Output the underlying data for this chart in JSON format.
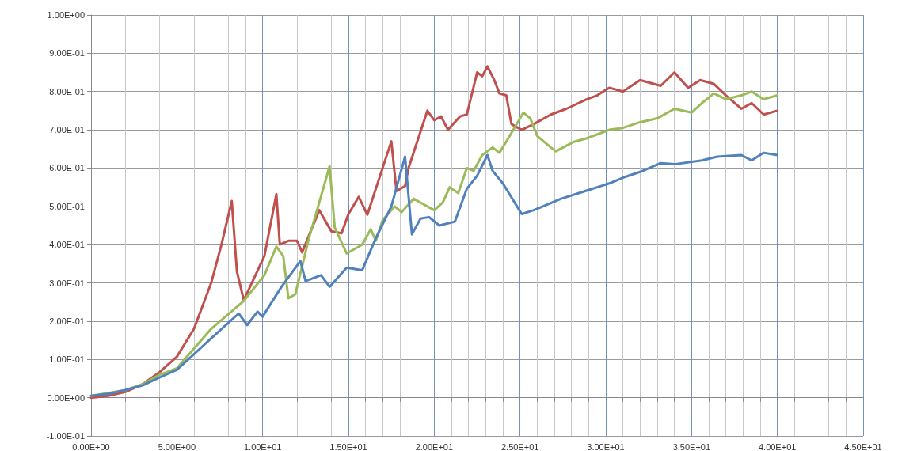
{
  "chart_data": {
    "type": "line",
    "xlim": [
      0,
      45
    ],
    "ylim": [
      -0.1,
      1.0
    ],
    "xticks": [
      {
        "value": 0,
        "label": "0.00E+00"
      },
      {
        "value": 1,
        "label": null
      },
      {
        "value": 2,
        "label": null
      },
      {
        "value": 3,
        "label": null
      },
      {
        "value": 4,
        "label": null
      },
      {
        "value": 5,
        "label": "5.00E+00"
      },
      {
        "value": 6,
        "label": null
      },
      {
        "value": 7,
        "label": null
      },
      {
        "value": 8,
        "label": null
      },
      {
        "value": 9,
        "label": null
      },
      {
        "value": 10,
        "label": "1.00E+01"
      },
      {
        "value": 11,
        "label": null
      },
      {
        "value": 12,
        "label": null
      },
      {
        "value": 13,
        "label": null
      },
      {
        "value": 14,
        "label": null
      },
      {
        "value": 15,
        "label": "1.50E+01"
      },
      {
        "value": 16,
        "label": null
      },
      {
        "value": 17,
        "label": null
      },
      {
        "value": 18,
        "label": null
      },
      {
        "value": 19,
        "label": null
      },
      {
        "value": 20,
        "label": "2.00E+01"
      },
      {
        "value": 21,
        "label": null
      },
      {
        "value": 22,
        "label": null
      },
      {
        "value": 23,
        "label": null
      },
      {
        "value": 24,
        "label": null
      },
      {
        "value": 25,
        "label": "2.50E+01"
      },
      {
        "value": 26,
        "label": null
      },
      {
        "value": 27,
        "label": null
      },
      {
        "value": 28,
        "label": null
      },
      {
        "value": 29,
        "label": null
      },
      {
        "value": 30,
        "label": "3.00E+01"
      },
      {
        "value": 31,
        "label": null
      },
      {
        "value": 32,
        "label": null
      },
      {
        "value": 33,
        "label": null
      },
      {
        "value": 34,
        "label": null
      },
      {
        "value": 35,
        "label": "3.50E+01"
      },
      {
        "value": 36,
        "label": null
      },
      {
        "value": 37,
        "label": null
      },
      {
        "value": 38,
        "label": null
      },
      {
        "value": 39,
        "label": null
      },
      {
        "value": 40,
        "label": "4.00E+01"
      },
      {
        "value": 41,
        "label": null
      },
      {
        "value": 42,
        "label": null
      },
      {
        "value": 43,
        "label": null
      },
      {
        "value": 44,
        "label": null
      },
      {
        "value": 45,
        "label": "4.50E+01"
      }
    ],
    "yticks": [
      {
        "value": -0.1,
        "label": "-1.00E-01"
      },
      {
        "value": 0,
        "label": "0.00E+00"
      },
      {
        "value": 0.1,
        "label": "1.00E-01"
      },
      {
        "value": 0.2,
        "label": "2.00E-01"
      },
      {
        "value": 0.3,
        "label": "3.00E-01"
      },
      {
        "value": 0.4,
        "label": "4.00E-01"
      },
      {
        "value": 0.5,
        "label": "5.00E-01"
      },
      {
        "value": 0.6,
        "label": "6.00E-01"
      },
      {
        "value": 0.7,
        "label": "7.00E-01"
      },
      {
        "value": 0.8,
        "label": "8.00E-01"
      },
      {
        "value": 0.9,
        "label": "9.00E-01"
      },
      {
        "value": 1.0,
        "label": "1.00E+00"
      }
    ],
    "grid": true,
    "marker": "none",
    "line_style": "solid",
    "series": [
      {
        "color": "#c0504d",
        "x": [
          0,
          1,
          2,
          3,
          4,
          5,
          6,
          7,
          7.6,
          8.2,
          8.5,
          8.9,
          10.1,
          10.8,
          11.0,
          11.5,
          12.0,
          12.3,
          13.3,
          14.0,
          14.6,
          15.0,
          15.6,
          16.1,
          17.5,
          17.8,
          18.3,
          18.5,
          19.6,
          20.0,
          20.4,
          20.8,
          21.5,
          21.9,
          22.5,
          22.8,
          23.1,
          23.5,
          23.8,
          24.2,
          24.5,
          25.1,
          25.8,
          26.8,
          27.7,
          28.9,
          29.5,
          30.2,
          31,
          32,
          33.2,
          34,
          34.8,
          35.5,
          36.3,
          37,
          37.9,
          38.5,
          39.2,
          40.0
        ],
        "values": [
          0,
          0.005,
          0.015,
          0.035,
          0.067,
          0.107,
          0.18,
          0.3,
          0.4,
          0.514,
          0.33,
          0.255,
          0.37,
          0.532,
          0.4,
          0.41,
          0.41,
          0.38,
          0.49,
          0.435,
          0.43,
          0.48,
          0.525,
          0.478,
          0.67,
          0.54,
          0.553,
          0.6,
          0.75,
          0.725,
          0.735,
          0.7,
          0.735,
          0.74,
          0.85,
          0.84,
          0.866,
          0.83,
          0.795,
          0.79,
          0.715,
          0.7,
          0.715,
          0.74,
          0.755,
          0.78,
          0.79,
          0.81,
          0.8,
          0.83,
          0.815,
          0.85,
          0.81,
          0.83,
          0.82,
          0.79,
          0.755,
          0.77,
          0.74,
          0.75
        ]
      },
      {
        "color": "#9bbb59",
        "x": [
          0,
          1,
          2,
          3,
          4,
          5,
          7.0,
          8.9,
          10.1,
          10.8,
          11.2,
          11.5,
          11.9,
          12.7,
          13.7,
          13.9,
          14.2,
          14.9,
          15.8,
          16.3,
          16.6,
          17.0,
          17.7,
          18.1,
          18.8,
          19.2,
          20.0,
          20.5,
          20.9,
          21.4,
          21.9,
          22.3,
          22.8,
          23.4,
          23.8,
          24.4,
          25.2,
          25.6,
          26.0,
          26.8,
          27.1,
          28.1,
          28.9,
          30.2,
          31,
          32.0,
          33,
          34.0,
          35.0,
          35.6,
          36.3,
          37,
          37.9,
          38.5,
          39.2,
          40.0
        ],
        "values": [
          0.005,
          0.012,
          0.02,
          0.035,
          0.06,
          0.077,
          0.18,
          0.253,
          0.32,
          0.395,
          0.37,
          0.26,
          0.27,
          0.417,
          0.573,
          0.605,
          0.445,
          0.377,
          0.4,
          0.44,
          0.41,
          0.465,
          0.5,
          0.485,
          0.52,
          0.51,
          0.49,
          0.51,
          0.55,
          0.535,
          0.6,
          0.593,
          0.634,
          0.654,
          0.64,
          0.684,
          0.745,
          0.73,
          0.684,
          0.654,
          0.644,
          0.668,
          0.678,
          0.7,
          0.705,
          0.72,
          0.73,
          0.755,
          0.745,
          0.77,
          0.795,
          0.78,
          0.79,
          0.8,
          0.78,
          0.79
        ]
      },
      {
        "color": "#4f81bd",
        "x": [
          0,
          1,
          2,
          3,
          4,
          5,
          7.0,
          8.6,
          9.1,
          9.7,
          10.0,
          11.1,
          12.2,
          12.5,
          13.4,
          13.9,
          14.9,
          15.8,
          16.6,
          17.5,
          18.3,
          18.7,
          19.2,
          19.7,
          20.3,
          21.2,
          21.9,
          22.5,
          23.1,
          23.4,
          24.0,
          25.1,
          25.8,
          27.4,
          28.8,
          30.2,
          31,
          32,
          33.2,
          34,
          35.6,
          36.5,
          37.9,
          38.5,
          39.2,
          40.0
        ],
        "values": [
          0.005,
          0.01,
          0.02,
          0.032,
          0.053,
          0.073,
          0.155,
          0.22,
          0.19,
          0.225,
          0.212,
          0.29,
          0.357,
          0.305,
          0.32,
          0.29,
          0.34,
          0.333,
          0.417,
          0.5,
          0.63,
          0.427,
          0.468,
          0.472,
          0.45,
          0.46,
          0.546,
          0.58,
          0.634,
          0.593,
          0.56,
          0.48,
          0.49,
          0.52,
          0.54,
          0.56,
          0.575,
          0.59,
          0.613,
          0.61,
          0.62,
          0.63,
          0.634,
          0.62,
          0.64,
          0.634
        ]
      }
    ]
  }
}
